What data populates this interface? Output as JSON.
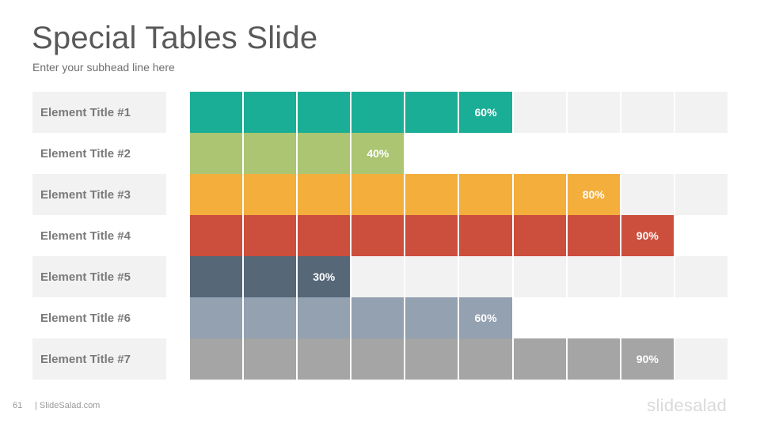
{
  "slide": {
    "title": "Special Tables Slide",
    "subtitle": "Enter your subhead line here"
  },
  "table": {
    "cells_per_row": 10,
    "rows": [
      {
        "label": "Element Title #1",
        "value": 60,
        "value_label": "60%",
        "color": "#1aae96",
        "shaded": true
      },
      {
        "label": "Element Title #2",
        "value": 40,
        "value_label": "40%",
        "color": "#abc572",
        "shaded": false
      },
      {
        "label": "Element Title #3",
        "value": 80,
        "value_label": "80%",
        "color": "#f3ae3c",
        "shaded": true
      },
      {
        "label": "Element Title #4",
        "value": 90,
        "value_label": "90%",
        "color": "#cc4e3d",
        "shaded": false
      },
      {
        "label": "Element Title #5",
        "value": 30,
        "value_label": "30%",
        "color": "#566778",
        "shaded": true
      },
      {
        "label": "Element Title #6",
        "value": 60,
        "value_label": "60%",
        "color": "#93a1b1",
        "shaded": false
      },
      {
        "label": "Element Title #7",
        "value": 90,
        "value_label": "90%",
        "color": "#a5a5a5",
        "shaded": true
      }
    ]
  },
  "footer": {
    "page_number": "61",
    "site": "| SlideSalad.com",
    "logo_text": "slidesalad"
  }
}
